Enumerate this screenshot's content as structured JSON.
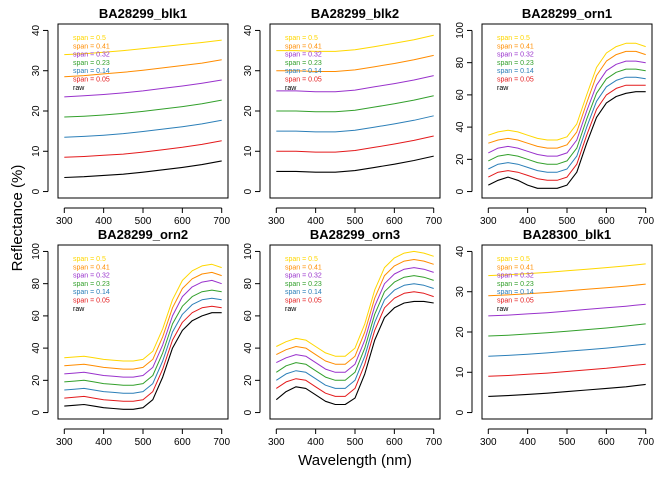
{
  "figure": {
    "xlabel": "Wavelength (nm)",
    "ylabel": "Reflectance (%)"
  },
  "legend": {
    "entries": [
      {
        "label": "span = 0.5",
        "color": "#FFD700"
      },
      {
        "label": "span = 0.41",
        "color": "#FF8C00"
      },
      {
        "label": "span = 0.32",
        "color": "#9932CC"
      },
      {
        "label": "span = 0.23",
        "color": "#33A02C"
      },
      {
        "label": "span = 0.14",
        "color": "#2C7FB8"
      },
      {
        "label": "span = 0.05",
        "color": "#E31A1C"
      },
      {
        "label": "raw",
        "color": "#000000"
      }
    ]
  },
  "chart_data": [
    {
      "type": "line",
      "title": "BA28299_blk1",
      "xlim": [
        300,
        700
      ],
      "xticks": [
        300,
        400,
        500,
        600,
        700
      ],
      "ylim": [
        0,
        40
      ],
      "yticks": [
        0,
        10,
        20,
        30,
        40
      ],
      "x": [
        300,
        350,
        400,
        450,
        500,
        550,
        600,
        650,
        700
      ],
      "series": [
        {
          "name": "span = 0.5",
          "color": "#FFD700",
          "values": [
            34,
            34.2,
            34.6,
            35,
            35.5,
            36,
            36.5,
            37,
            37.6
          ]
        },
        {
          "name": "span = 0.41",
          "color": "#FF8C00",
          "values": [
            28.5,
            28.8,
            29.2,
            29.6,
            30.1,
            30.7,
            31.3,
            31.9,
            32.7
          ]
        },
        {
          "name": "span = 0.32",
          "color": "#9932CC",
          "values": [
            23.5,
            23.8,
            24.1,
            24.5,
            25,
            25.6,
            26.2,
            26.9,
            27.7
          ]
        },
        {
          "name": "span = 0.23",
          "color": "#33A02C",
          "values": [
            18.5,
            18.7,
            19,
            19.4,
            19.9,
            20.5,
            21.1,
            21.8,
            22.7
          ]
        },
        {
          "name": "span = 0.14",
          "color": "#2C7FB8",
          "values": [
            13.5,
            13.7,
            14,
            14.4,
            14.9,
            15.5,
            16.1,
            16.8,
            17.7
          ]
        },
        {
          "name": "span = 0.05",
          "color": "#E31A1C",
          "values": [
            8.5,
            8.7,
            9,
            9.3,
            9.8,
            10.4,
            11,
            11.7,
            12.6
          ]
        },
        {
          "name": "raw",
          "color": "#000000",
          "values": [
            3.5,
            3.7,
            4,
            4.3,
            4.8,
            5.4,
            6,
            6.7,
            7.6
          ]
        }
      ]
    },
    {
      "type": "line",
      "title": "BA28299_blk2",
      "xlim": [
        300,
        700
      ],
      "xticks": [
        300,
        400,
        500,
        600,
        700
      ],
      "ylim": [
        0,
        40
      ],
      "yticks": [
        0,
        10,
        20,
        30,
        40
      ],
      "x": [
        300,
        350,
        400,
        450,
        500,
        550,
        600,
        650,
        700
      ],
      "series": [
        {
          "name": "span = 0.5",
          "color": "#FFD700",
          "values": [
            35,
            35,
            34.8,
            34.8,
            35.2,
            36,
            36.8,
            37.7,
            38.8
          ]
        },
        {
          "name": "span = 0.41",
          "color": "#FF8C00",
          "values": [
            30,
            30,
            29.8,
            29.8,
            30.2,
            31,
            31.8,
            32.7,
            33.8
          ]
        },
        {
          "name": "span = 0.32",
          "color": "#9932CC",
          "values": [
            25,
            25,
            24.8,
            24.8,
            25.2,
            26,
            26.8,
            27.7,
            28.8
          ]
        },
        {
          "name": "span = 0.23",
          "color": "#33A02C",
          "values": [
            20,
            20,
            19.8,
            19.8,
            20.2,
            21,
            21.8,
            22.7,
            23.8
          ]
        },
        {
          "name": "span = 0.14",
          "color": "#2C7FB8",
          "values": [
            15,
            15,
            14.8,
            14.8,
            15.2,
            16,
            16.8,
            17.7,
            18.8
          ]
        },
        {
          "name": "span = 0.05",
          "color": "#E31A1C",
          "values": [
            10,
            10,
            9.8,
            9.8,
            10.2,
            11,
            11.8,
            12.7,
            13.8
          ]
        },
        {
          "name": "raw",
          "color": "#000000",
          "values": [
            5,
            5,
            4.8,
            4.8,
            5.2,
            6,
            6.8,
            7.7,
            8.8
          ]
        }
      ]
    },
    {
      "type": "line",
      "title": "BA28299_orn1",
      "xlim": [
        300,
        700
      ],
      "xticks": [
        300,
        400,
        500,
        600,
        700
      ],
      "ylim": [
        0,
        100
      ],
      "yticks": [
        0,
        20,
        40,
        60,
        80,
        100
      ],
      "x": [
        300,
        325,
        350,
        375,
        400,
        425,
        450,
        475,
        500,
        525,
        550,
        575,
        600,
        625,
        650,
        675,
        700
      ],
      "series": [
        {
          "name": "span = 0.5",
          "color": "#FFD700",
          "values": [
            35,
            37,
            38,
            37,
            35,
            33,
            32,
            32,
            34,
            42,
            60,
            77,
            86,
            90,
            92,
            92,
            90
          ]
        },
        {
          "name": "span = 0.41",
          "color": "#FF8C00",
          "values": [
            30,
            32,
            33,
            32,
            30,
            28,
            27,
            27,
            29,
            37,
            55,
            72,
            81,
            85,
            87,
            87,
            85
          ]
        },
        {
          "name": "span = 0.32",
          "color": "#9932CC",
          "values": [
            24,
            27,
            28,
            27,
            25,
            23,
            22,
            22,
            24,
            32,
            50,
            66,
            75,
            79,
            81,
            81,
            80
          ]
        },
        {
          "name": "span = 0.23",
          "color": "#33A02C",
          "values": [
            19,
            22,
            23,
            22,
            20,
            18,
            17,
            17,
            19,
            27,
            45,
            61,
            70,
            74,
            76,
            76,
            75
          ]
        },
        {
          "name": "span = 0.14",
          "color": "#2C7FB8",
          "values": [
            14,
            17,
            18,
            17,
            15,
            13,
            12,
            12,
            14,
            22,
            40,
            56,
            65,
            69,
            71,
            71,
            70
          ]
        },
        {
          "name": "span = 0.05",
          "color": "#E31A1C",
          "values": [
            9,
            12,
            13,
            12,
            10,
            8,
            7,
            7,
            9,
            17,
            35,
            51,
            60,
            64,
            66,
            66,
            66
          ]
        },
        {
          "name": "raw",
          "color": "#000000",
          "values": [
            4,
            7,
            9,
            7,
            4,
            2,
            2,
            2,
            4,
            12,
            30,
            46,
            55,
            59,
            61,
            62,
            62
          ]
        }
      ]
    },
    {
      "type": "line",
      "title": "BA28299_orn2",
      "xlim": [
        300,
        700
      ],
      "xticks": [
        300,
        400,
        500,
        600,
        700
      ],
      "ylim": [
        0,
        100
      ],
      "yticks": [
        0,
        20,
        40,
        60,
        80,
        100
      ],
      "x": [
        300,
        325,
        350,
        375,
        400,
        425,
        450,
        475,
        500,
        525,
        550,
        575,
        600,
        625,
        650,
        675,
        700
      ],
      "series": [
        {
          "name": "span = 0.5",
          "color": "#FFD700",
          "values": [
            34,
            34.5,
            35,
            34,
            33,
            32.5,
            32,
            32,
            33,
            38,
            52,
            70,
            82,
            88,
            91,
            92,
            90
          ]
        },
        {
          "name": "span = 0.41",
          "color": "#FF8C00",
          "values": [
            29,
            29.5,
            30,
            29,
            28,
            27.5,
            27,
            27,
            28,
            33,
            47,
            65,
            77,
            83,
            86,
            87,
            85
          ]
        },
        {
          "name": "span = 0.32",
          "color": "#9932CC",
          "values": [
            24,
            24.5,
            25,
            24,
            23,
            22.5,
            22,
            22,
            23,
            28,
            42,
            60,
            72,
            78,
            81,
            82,
            80
          ]
        },
        {
          "name": "span = 0.23",
          "color": "#33A02C",
          "values": [
            19,
            19.5,
            20,
            19,
            18,
            17.5,
            17,
            17,
            18,
            23,
            37,
            55,
            66,
            72,
            75,
            76,
            75
          ]
        },
        {
          "name": "span = 0.14",
          "color": "#2C7FB8",
          "values": [
            14,
            14.5,
            15,
            14,
            13,
            12.5,
            12,
            12,
            13,
            18,
            32,
            50,
            61,
            67,
            70,
            71,
            70
          ]
        },
        {
          "name": "span = 0.05",
          "color": "#E31A1C",
          "values": [
            9,
            9.5,
            10,
            9,
            8,
            7.5,
            7,
            7,
            8,
            13,
            27,
            45,
            56,
            62,
            65,
            66,
            65
          ]
        },
        {
          "name": "raw",
          "color": "#000000",
          "values": [
            4,
            4.5,
            5,
            4,
            3,
            2.5,
            2,
            2,
            3,
            8,
            22,
            40,
            51,
            57,
            60,
            62,
            62
          ]
        }
      ]
    },
    {
      "type": "line",
      "title": "BA28299_orn3",
      "xlim": [
        300,
        700
      ],
      "xticks": [
        300,
        400,
        500,
        600,
        700
      ],
      "ylim": [
        0,
        100
      ],
      "yticks": [
        0,
        20,
        40,
        60,
        80,
        100
      ],
      "x": [
        300,
        325,
        350,
        375,
        400,
        425,
        450,
        475,
        500,
        525,
        550,
        575,
        600,
        625,
        650,
        675,
        700
      ],
      "series": [
        {
          "name": "span = 0.5",
          "color": "#FFD700",
          "values": [
            41,
            44,
            46,
            45,
            41,
            37,
            35,
            35,
            40,
            55,
            76,
            90,
            96,
            99,
            100,
            99,
            97
          ]
        },
        {
          "name": "span = 0.41",
          "color": "#FF8C00",
          "values": [
            36,
            39,
            41,
            40,
            36,
            32,
            30,
            30,
            35,
            50,
            71,
            85,
            91,
            94,
            95,
            94,
            92
          ]
        },
        {
          "name": "span = 0.32",
          "color": "#9932CC",
          "values": [
            31,
            34,
            36,
            35,
            31,
            27,
            25,
            25,
            30,
            45,
            66,
            80,
            86,
            89,
            90,
            89,
            87
          ]
        },
        {
          "name": "span = 0.23",
          "color": "#33A02C",
          "values": [
            25,
            29,
            31,
            30,
            26,
            22,
            20,
            20,
            25,
            40,
            61,
            75,
            81,
            84,
            85,
            84,
            82
          ]
        },
        {
          "name": "span = 0.14",
          "color": "#2C7FB8",
          "values": [
            20,
            24,
            26,
            25,
            21,
            17,
            15,
            15,
            20,
            35,
            56,
            70,
            76,
            79,
            80,
            79,
            77
          ]
        },
        {
          "name": "span = 0.05",
          "color": "#E31A1C",
          "values": [
            15,
            19,
            21,
            20,
            16,
            12,
            10,
            10,
            15,
            30,
            51,
            65,
            71,
            74,
            75,
            74,
            72
          ]
        },
        {
          "name": "raw",
          "color": "#000000",
          "values": [
            8,
            13,
            16,
            15,
            11,
            7,
            5,
            5,
            9,
            24,
            45,
            59,
            65,
            68,
            69,
            69,
            68
          ]
        }
      ]
    },
    {
      "type": "line",
      "title": "BA28300_blk1",
      "xlim": [
        300,
        700
      ],
      "xticks": [
        300,
        400,
        500,
        600,
        700
      ],
      "ylim": [
        0,
        40
      ],
      "yticks": [
        0,
        10,
        20,
        30,
        40
      ],
      "x": [
        300,
        350,
        400,
        450,
        500,
        550,
        600,
        650,
        700
      ],
      "series": [
        {
          "name": "span = 0.5",
          "color": "#FFD700",
          "values": [
            34,
            34.2,
            34.5,
            34.8,
            35.2,
            35.6,
            36,
            36.4,
            36.9
          ]
        },
        {
          "name": "span = 0.41",
          "color": "#FF8C00",
          "values": [
            29,
            29.2,
            29.5,
            29.8,
            30.2,
            30.6,
            31,
            31.4,
            31.9
          ]
        },
        {
          "name": "span = 0.32",
          "color": "#9932CC",
          "values": [
            24,
            24.2,
            24.5,
            24.8,
            25.2,
            25.6,
            26,
            26.4,
            26.9
          ]
        },
        {
          "name": "span = 0.23",
          "color": "#33A02C",
          "values": [
            19,
            19.2,
            19.5,
            19.8,
            20.2,
            20.6,
            21,
            21.5,
            22
          ]
        },
        {
          "name": "span = 0.14",
          "color": "#2C7FB8",
          "values": [
            14,
            14.2,
            14.5,
            14.8,
            15.2,
            15.6,
            16,
            16.5,
            17
          ]
        },
        {
          "name": "span = 0.05",
          "color": "#E31A1C",
          "values": [
            9,
            9.2,
            9.5,
            9.8,
            10.2,
            10.6,
            11,
            11.5,
            12
          ]
        },
        {
          "name": "raw",
          "color": "#000000",
          "values": [
            4,
            4.2,
            4.5,
            4.8,
            5.2,
            5.6,
            6,
            6.4,
            7
          ]
        }
      ]
    }
  ]
}
